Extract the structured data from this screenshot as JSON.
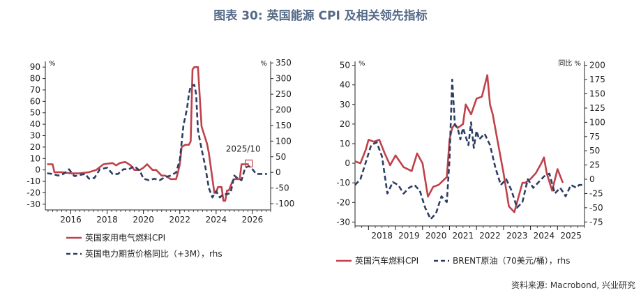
{
  "figure_title": "图表 30: 英国能源 CPI 及相关领先指标",
  "source": "资料来源: Macrobond, 兴业研究",
  "colors": {
    "red": "#c0414a",
    "navy": "#2c3e63",
    "axis": "#222222",
    "title": "#556a88"
  },
  "chart_data": [
    {
      "type": "line",
      "annotation": "2025/10",
      "left_unit": "%",
      "right_unit": "%",
      "ylim": [
        -35,
        95
      ],
      "y2lim": [
        -120,
        355
      ],
      "xlim": [
        2014.6,
        2027.0
      ],
      "yticks": [
        -30,
        -20,
        -10,
        0,
        10,
        20,
        30,
        40,
        50,
        60,
        70,
        80,
        90
      ],
      "y2ticks": [
        -100,
        -50,
        0,
        50,
        100,
        150,
        200,
        250,
        300,
        350
      ],
      "xticks": [
        2016,
        2018,
        2020,
        2022,
        2024,
        2026
      ],
      "series": [
        {
          "name": "英国家用电气燃料CPI",
          "axis": "left",
          "style": "solid",
          "color": "#c0414a",
          "x": [
            2014.7,
            2015.0,
            2015.1,
            2015.5,
            2016.0,
            2016.5,
            2017.0,
            2017.4,
            2017.8,
            2018.3,
            2018.5,
            2018.7,
            2019.0,
            2019.3,
            2019.5,
            2019.8,
            2020.0,
            2020.2,
            2020.5,
            2020.7,
            2021.0,
            2021.2,
            2021.5,
            2021.8,
            2021.9,
            2022.0,
            2022.1,
            2022.3,
            2022.5,
            2022.6,
            2022.7,
            2022.8,
            2023.0,
            2023.2,
            2023.5,
            2023.6,
            2023.9,
            2024.0,
            2024.1,
            2024.3,
            2024.4,
            2024.5,
            2024.6,
            2024.7,
            2024.9,
            2025.0,
            2025.3,
            2025.4,
            2025.6,
            2025.8
          ],
          "values": [
            5,
            5,
            -2,
            -2,
            -3,
            -3,
            -2,
            0,
            5,
            6,
            4,
            6,
            7,
            4,
            0,
            0,
            2,
            5,
            0,
            0,
            -5,
            -5,
            -8,
            -8,
            -2,
            5,
            20,
            22,
            22,
            25,
            88,
            90,
            90,
            38,
            23,
            15,
            -20,
            -20,
            -15,
            -15,
            -27,
            -27,
            -18,
            -18,
            -10,
            -8,
            -8,
            5,
            5,
            5
          ]
        },
        {
          "name": "英国电力期货价格同比（+3M），rhs",
          "axis": "right",
          "style": "dashed",
          "color": "#2c3e63",
          "x": [
            2014.7,
            2015.0,
            2015.3,
            2015.6,
            2015.9,
            2016.2,
            2016.5,
            2016.8,
            2017.0,
            2017.3,
            2017.6,
            2018.0,
            2018.3,
            2018.6,
            2018.9,
            2019.2,
            2019.5,
            2019.8,
            2020.0,
            2020.3,
            2020.6,
            2020.9,
            2021.2,
            2021.5,
            2021.8,
            2022.0,
            2022.2,
            2022.4,
            2022.5,
            2022.6,
            2022.8,
            2022.9,
            2023.0,
            2023.2,
            2023.4,
            2023.6,
            2023.8,
            2024.0,
            2024.2,
            2024.4,
            2024.6,
            2024.8,
            2025.0,
            2025.2,
            2025.4,
            2025.6,
            2025.8,
            2026.0,
            2026.2,
            2026.5,
            2026.8
          ],
          "values": [
            -3,
            -5,
            -10,
            -5,
            10,
            -12,
            -8,
            -5,
            -20,
            -18,
            10,
            15,
            -5,
            -5,
            10,
            10,
            20,
            5,
            -20,
            -25,
            -20,
            -25,
            -15,
            -10,
            0,
            40,
            150,
            205,
            250,
            275,
            280,
            250,
            135,
            75,
            20,
            -50,
            -80,
            -60,
            -80,
            -70,
            -70,
            -65,
            -10,
            -20,
            -25,
            15,
            20,
            10,
            -5,
            -5,
            -5
          ]
        }
      ],
      "legend": [
        "英国家用电气燃料CPI",
        "英国电力期货价格同比（+3M），rhs"
      ]
    },
    {
      "type": "line",
      "left_unit": "%",
      "right_unit": "同比 %",
      "ylim": [
        -32,
        52
      ],
      "y2lim": [
        -82,
        207
      ],
      "xlim": [
        2017.5,
        2026.0
      ],
      "yticks": [
        -30,
        -20,
        -10,
        0,
        10,
        20,
        30,
        40,
        50
      ],
      "y2ticks": [
        -75,
        -50,
        -25,
        0,
        25,
        50,
        75,
        100,
        125,
        150,
        175,
        200
      ],
      "xticks": [
        2018,
        2019,
        2020,
        2021,
        2022,
        2023,
        2024,
        2025
      ],
      "series": [
        {
          "name": "英国汽车燃料CPI",
          "axis": "left",
          "style": "solid",
          "color": "#c0414a",
          "x": [
            2017.5,
            2017.7,
            2017.9,
            2018.0,
            2018.2,
            2018.4,
            2018.6,
            2018.8,
            2019.0,
            2019.3,
            2019.6,
            2019.8,
            2020.0,
            2020.2,
            2020.4,
            2020.6,
            2020.9,
            2021.0,
            2021.1,
            2021.2,
            2021.3,
            2021.5,
            2021.6,
            2021.8,
            2022.0,
            2022.2,
            2022.4,
            2022.5,
            2022.6,
            2022.8,
            2023.0,
            2023.2,
            2023.4,
            2023.6,
            2023.7,
            2023.8,
            2024.0,
            2024.2,
            2024.4,
            2024.5,
            2024.6,
            2024.8,
            2025.0,
            2025.2
          ],
          "values": [
            1,
            0,
            7,
            12,
            11,
            12,
            5,
            -1,
            4,
            -2,
            -4,
            5,
            0,
            -17,
            -12,
            -11,
            -7,
            12,
            18,
            20,
            18,
            20,
            30,
            25,
            33,
            34,
            45,
            30,
            25,
            10,
            -5,
            -22,
            -25,
            -15,
            -10,
            -10,
            -8,
            -5,
            0,
            3,
            -5,
            -14,
            -3,
            -10
          ]
        },
        {
          "name": "BRENT原油（70美元/桶），rhs",
          "axis": "right",
          "style": "dashed",
          "color": "#2c3e63",
          "x": [
            2017.5,
            2017.7,
            2017.9,
            2018.1,
            2018.3,
            2018.5,
            2018.7,
            2018.9,
            2019.1,
            2019.3,
            2019.5,
            2019.7,
            2019.9,
            2020.1,
            2020.3,
            2020.5,
            2020.7,
            2020.9,
            2021.0,
            2021.1,
            2021.2,
            2021.3,
            2021.4,
            2021.5,
            2021.6,
            2021.7,
            2021.8,
            2021.9,
            2022.0,
            2022.1,
            2022.3,
            2022.5,
            2022.7,
            2022.9,
            2023.1,
            2023.3,
            2023.5,
            2023.7,
            2023.9,
            2024.1,
            2024.3,
            2024.5,
            2024.7,
            2024.9,
            2025.1,
            2025.3,
            2025.5,
            2025.7,
            2025.8,
            2026.0
          ],
          "values": [
            -10,
            0,
            30,
            60,
            65,
            40,
            -25,
            -5,
            -10,
            -25,
            -15,
            -10,
            -20,
            -50,
            -70,
            -60,
            -30,
            -40,
            35,
            175,
            95,
            90,
            70,
            90,
            75,
            60,
            100,
            55,
            85,
            70,
            80,
            60,
            20,
            -10,
            0,
            -20,
            -50,
            -40,
            0,
            -15,
            -5,
            5,
            10,
            -25,
            -15,
            -30,
            -10,
            -15,
            -10,
            -10
          ]
        }
      ],
      "legend": [
        "英国汽车燃料CPI",
        "BRENT原油（70美元/桶），rhs"
      ]
    }
  ]
}
